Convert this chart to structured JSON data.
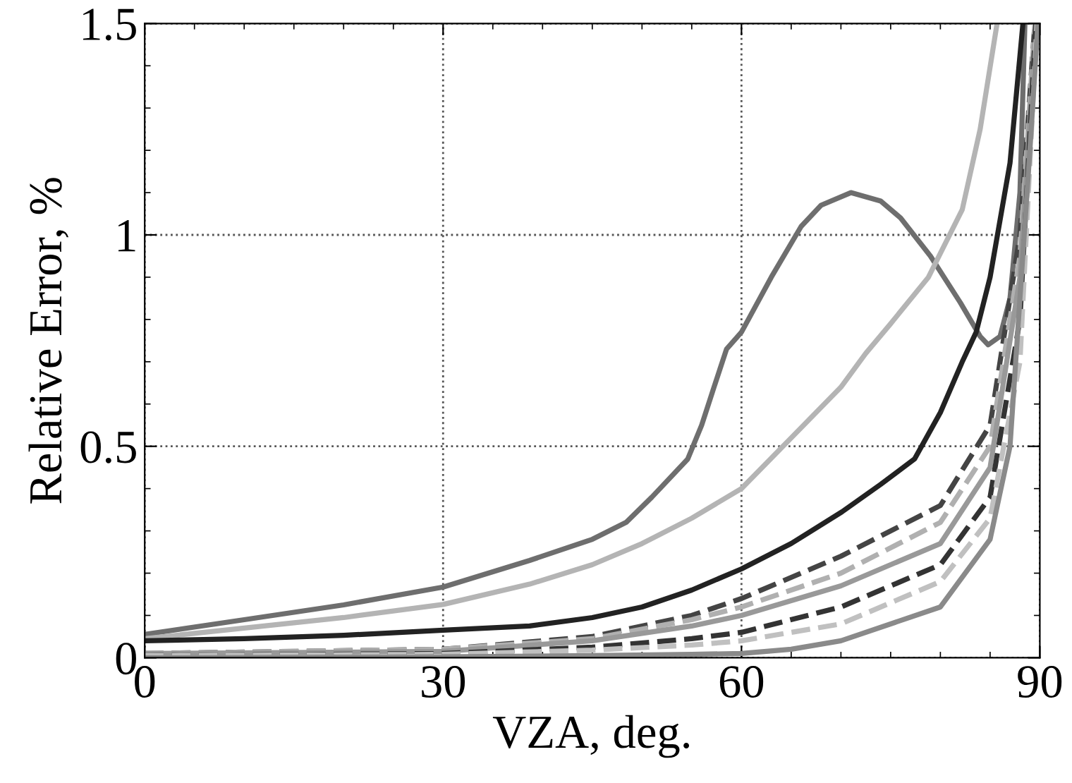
{
  "chart_data": {
    "type": "line",
    "xlabel": "VZA, deg.",
    "ylabel": "Relative Error, %",
    "xlim": [
      0,
      90
    ],
    "ylim": [
      0,
      1.5
    ],
    "xticks": [
      0,
      30,
      60,
      90
    ],
    "yticks": [
      0,
      0.5,
      1,
      1.5
    ],
    "grid": true,
    "legend": false,
    "series": [
      {
        "color": "#6e6e6e",
        "line_style": "solid",
        "x": [
          0,
          10,
          20,
          30,
          38.7,
          45,
          48.4,
          51,
          54.6,
          56,
          57.1,
          58.5,
          60,
          63,
          66,
          68,
          71,
          74,
          76,
          79,
          82,
          84,
          84.8,
          86,
          87,
          88,
          88.5
        ],
        "values": [
          0.055,
          0.09,
          0.125,
          0.167,
          0.23,
          0.28,
          0.32,
          0.38,
          0.47,
          0.55,
          0.63,
          0.73,
          0.77,
          0.9,
          1.02,
          1.07,
          1.1,
          1.08,
          1.04,
          0.95,
          0.84,
          0.76,
          0.74,
          0.76,
          0.85,
          1.1,
          1.5
        ]
      },
      {
        "color": "#b4b4b4",
        "line_style": "solid",
        "x": [
          0,
          10,
          20,
          30,
          38.7,
          45,
          50,
          55,
          60,
          65,
          70,
          72.5,
          75,
          78.8,
          82.2,
          84,
          85.7
        ],
        "values": [
          0.045,
          0.07,
          0.095,
          0.126,
          0.174,
          0.22,
          0.27,
          0.33,
          0.4,
          0.52,
          0.64,
          0.72,
          0.79,
          0.9,
          1.06,
          1.25,
          1.5
        ]
      },
      {
        "color": "#222222",
        "line_style": "solid",
        "x": [
          0,
          10,
          20,
          30,
          38.7,
          45,
          50,
          55,
          60,
          65,
          70.1,
          74,
          77.4,
          80,
          82.2,
          83.6,
          85,
          87,
          88.3
        ],
        "values": [
          0.04,
          0.045,
          0.053,
          0.065,
          0.075,
          0.095,
          0.12,
          0.16,
          0.21,
          0.27,
          0.345,
          0.41,
          0.47,
          0.58,
          0.7,
          0.77,
          0.9,
          1.17,
          1.5
        ]
      },
      {
        "color": "#444444",
        "line_style": "dashed",
        "x": [
          0,
          30,
          45,
          55,
          60,
          70,
          80,
          85,
          88,
          89.5
        ],
        "values": [
          0.01,
          0.02,
          0.05,
          0.1,
          0.14,
          0.24,
          0.36,
          0.55,
          1.0,
          1.5
        ]
      },
      {
        "color": "#b0b0b0",
        "line_style": "dashed",
        "x": [
          0,
          30,
          45,
          55,
          60,
          70,
          80,
          85,
          88,
          89.5
        ],
        "values": [
          0.01,
          0.02,
          0.045,
          0.09,
          0.12,
          0.2,
          0.32,
          0.5,
          0.95,
          1.5
        ]
      },
      {
        "color": "#999999",
        "line_style": "solid",
        "x": [
          0,
          30,
          45,
          55,
          60,
          70,
          80,
          85,
          88,
          89.6
        ],
        "values": [
          0.01,
          0.015,
          0.04,
          0.075,
          0.1,
          0.17,
          0.27,
          0.45,
          0.9,
          1.5
        ]
      },
      {
        "color": "#333333",
        "line_style": "dashed",
        "x": [
          0,
          30,
          45,
          55,
          60,
          70,
          80,
          85,
          88,
          89.6
        ],
        "values": [
          0.005,
          0.01,
          0.025,
          0.045,
          0.06,
          0.12,
          0.22,
          0.38,
          0.8,
          1.5
        ]
      },
      {
        "color": "#c0c0c0",
        "line_style": "dashed",
        "x": [
          0,
          30,
          45,
          55,
          60,
          70,
          80,
          85,
          88,
          89.7
        ],
        "values": [
          0.005,
          0.008,
          0.018,
          0.03,
          0.04,
          0.08,
          0.18,
          0.33,
          0.7,
          1.5
        ]
      },
      {
        "color": "#8a8a8a",
        "line_style": "solid",
        "x": [
          0,
          30,
          45,
          55,
          60,
          65,
          70,
          80,
          85,
          87,
          89,
          89.8
        ],
        "values": [
          0.0,
          0.002,
          0.005,
          0.008,
          0.01,
          0.02,
          0.04,
          0.12,
          0.28,
          0.5,
          1.2,
          1.5
        ]
      }
    ]
  }
}
